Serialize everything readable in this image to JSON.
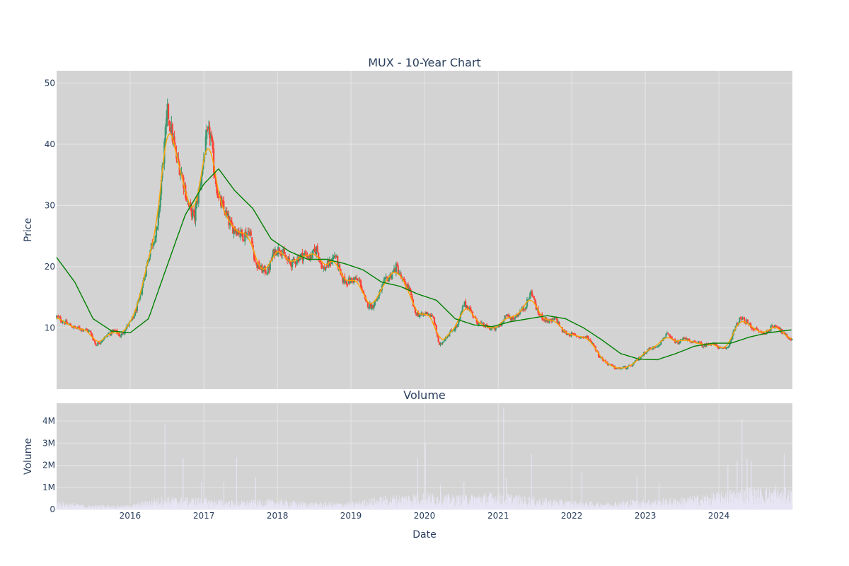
{
  "chart_data": [
    {
      "type": "candlestick",
      "title": "MUX - 10-Year Chart",
      "xlabel": "",
      "ylabel": "Price",
      "x_range": [
        "2015-01-01",
        "2024-12-31"
      ],
      "y_range": [
        0,
        52
      ],
      "x_ticks": [
        "2016",
        "2017",
        "2018",
        "2019",
        "2020",
        "2021",
        "2022",
        "2023",
        "2024"
      ],
      "y_ticks": [
        "10",
        "20",
        "30",
        "40",
        "50"
      ],
      "grid": true,
      "legend": "none",
      "colors": {
        "background": "#d3d3d3",
        "up": "#3d9970",
        "down": "#ff4136",
        "ma_short": "#ffa500",
        "ma_long": "#008000",
        "grid": "#e6e6e6"
      },
      "close_series": [
        [
          "2015-01-01",
          11.8
        ],
        [
          "2015-02-15",
          10.8
        ],
        [
          "2015-04-01",
          10.0
        ],
        [
          "2015-05-15",
          9.8
        ],
        [
          "2015-06-15",
          9.4
        ],
        [
          "2015-07-15",
          7.2
        ],
        [
          "2015-08-15",
          8.0
        ],
        [
          "2015-09-15",
          9.0
        ],
        [
          "2015-10-15",
          9.6
        ],
        [
          "2015-11-15",
          8.6
        ],
        [
          "2015-12-15",
          10.2
        ],
        [
          "2016-01-15",
          11.5
        ],
        [
          "2016-02-15",
          14.5
        ],
        [
          "2016-03-15",
          19.0
        ],
        [
          "2016-04-15",
          23.5
        ],
        [
          "2016-05-15",
          26.0
        ],
        [
          "2016-06-01",
          33.0
        ],
        [
          "2016-06-20",
          40.0
        ],
        [
          "2016-07-05",
          45.5
        ],
        [
          "2016-07-25",
          42.0
        ],
        [
          "2016-08-15",
          38.0
        ],
        [
          "2016-09-15",
          35.0
        ],
        [
          "2016-10-15",
          30.0
        ],
        [
          "2016-11-15",
          28.0
        ],
        [
          "2016-12-15",
          34.0
        ],
        [
          "2017-01-15",
          41.0
        ],
        [
          "2017-02-01",
          42.0
        ],
        [
          "2017-02-20",
          36.0
        ],
        [
          "2017-03-15",
          31.0
        ],
        [
          "2017-04-15",
          29.0
        ],
        [
          "2017-05-15",
          26.5
        ],
        [
          "2017-06-15",
          26.0
        ],
        [
          "2017-07-15",
          25.0
        ],
        [
          "2017-08-15",
          26.0
        ],
        [
          "2017-09-15",
          20.5
        ],
        [
          "2017-10-15",
          19.5
        ],
        [
          "2017-11-15",
          19.2
        ],
        [
          "2017-12-15",
          22.5
        ],
        [
          "2018-01-15",
          23.0
        ],
        [
          "2018-02-15",
          21.0
        ],
        [
          "2018-03-15",
          20.5
        ],
        [
          "2018-04-15",
          21.5
        ],
        [
          "2018-05-15",
          22.0
        ],
        [
          "2018-06-15",
          21.5
        ],
        [
          "2018-07-15",
          23.0
        ],
        [
          "2018-08-15",
          19.5
        ],
        [
          "2018-09-15",
          20.5
        ],
        [
          "2018-10-15",
          22.0
        ],
        [
          "2018-11-15",
          18.0
        ],
        [
          "2018-12-15",
          17.5
        ],
        [
          "2019-01-15",
          18.0
        ],
        [
          "2019-02-15",
          17.5
        ],
        [
          "2019-03-15",
          14.0
        ],
        [
          "2019-04-15",
          13.5
        ],
        [
          "2019-05-15",
          15.0
        ],
        [
          "2019-06-15",
          17.5
        ],
        [
          "2019-07-15",
          18.5
        ],
        [
          "2019-08-15",
          20.0
        ],
        [
          "2019-09-15",
          17.5
        ],
        [
          "2019-10-15",
          16.5
        ],
        [
          "2019-11-15",
          12.5
        ],
        [
          "2019-12-15",
          12.0
        ],
        [
          "2020-01-15",
          12.5
        ],
        [
          "2020-02-15",
          11.5
        ],
        [
          "2020-03-15",
          7.0
        ],
        [
          "2020-04-15",
          8.5
        ],
        [
          "2020-05-15",
          9.5
        ],
        [
          "2020-06-15",
          10.5
        ],
        [
          "2020-07-15",
          14.0
        ],
        [
          "2020-08-15",
          13.0
        ],
        [
          "2020-09-15",
          11.0
        ],
        [
          "2020-10-15",
          10.5
        ],
        [
          "2020-11-15",
          10.0
        ],
        [
          "2020-12-15",
          9.8
        ],
        [
          "2021-01-15",
          10.5
        ],
        [
          "2021-02-01",
          12.0
        ],
        [
          "2021-03-15",
          11.5
        ],
        [
          "2021-04-15",
          12.5
        ],
        [
          "2021-05-15",
          13.5
        ],
        [
          "2021-06-15",
          16.0
        ],
        [
          "2021-07-15",
          12.5
        ],
        [
          "2021-08-15",
          11.5
        ],
        [
          "2021-09-15",
          11.0
        ],
        [
          "2021-10-15",
          11.5
        ],
        [
          "2021-11-15",
          9.5
        ],
        [
          "2021-12-15",
          9.0
        ],
        [
          "2022-01-15",
          8.8
        ],
        [
          "2022-02-15",
          8.5
        ],
        [
          "2022-03-15",
          8.5
        ],
        [
          "2022-04-15",
          7.5
        ],
        [
          "2022-05-15",
          5.5
        ],
        [
          "2022-06-15",
          4.5
        ],
        [
          "2022-07-15",
          3.8
        ],
        [
          "2022-08-15",
          3.3
        ],
        [
          "2022-09-15",
          3.5
        ],
        [
          "2022-10-15",
          3.6
        ],
        [
          "2022-11-15",
          4.5
        ],
        [
          "2022-12-15",
          5.5
        ],
        [
          "2023-01-15",
          6.5
        ],
        [
          "2023-02-15",
          6.8
        ],
        [
          "2023-03-15",
          7.5
        ],
        [
          "2023-04-15",
          9.0
        ],
        [
          "2023-05-15",
          8.0
        ],
        [
          "2023-06-15",
          7.5
        ],
        [
          "2023-07-15",
          8.5
        ],
        [
          "2023-08-15",
          7.5
        ],
        [
          "2023-09-15",
          7.8
        ],
        [
          "2023-10-15",
          7.0
        ],
        [
          "2023-11-15",
          7.5
        ],
        [
          "2023-12-15",
          7.2
        ],
        [
          "2024-01-15",
          6.5
        ],
        [
          "2024-02-15",
          6.8
        ],
        [
          "2024-03-15",
          9.5
        ],
        [
          "2024-04-15",
          11.5
        ],
        [
          "2024-05-15",
          11.0
        ],
        [
          "2024-06-15",
          10.0
        ],
        [
          "2024-07-15",
          9.5
        ],
        [
          "2024-08-15",
          9.0
        ],
        [
          "2024-09-15",
          10.0
        ],
        [
          "2024-10-15",
          10.5
        ],
        [
          "2024-11-15",
          9.0
        ],
        [
          "2024-12-31",
          8.0
        ]
      ],
      "ma_long_series": [
        [
          "2015-01-01",
          21.5
        ],
        [
          "2015-04-01",
          17.5
        ],
        [
          "2015-07-01",
          11.5
        ],
        [
          "2015-10-01",
          9.5
        ],
        [
          "2016-01-01",
          9.2
        ],
        [
          "2016-04-01",
          11.5
        ],
        [
          "2016-07-01",
          20.0
        ],
        [
          "2016-10-01",
          28.5
        ],
        [
          "2017-01-01",
          33.5
        ],
        [
          "2017-03-15",
          36.0
        ],
        [
          "2017-06-01",
          32.5
        ],
        [
          "2017-09-01",
          29.5
        ],
        [
          "2017-12-01",
          24.5
        ],
        [
          "2018-03-01",
          22.5
        ],
        [
          "2018-06-01",
          21.2
        ],
        [
          "2018-09-01",
          21.2
        ],
        [
          "2018-12-01",
          20.5
        ],
        [
          "2019-03-01",
          19.5
        ],
        [
          "2019-06-01",
          17.5
        ],
        [
          "2019-09-01",
          16.8
        ],
        [
          "2019-12-01",
          15.5
        ],
        [
          "2020-03-01",
          14.5
        ],
        [
          "2020-06-01",
          11.5
        ],
        [
          "2020-09-01",
          10.5
        ],
        [
          "2020-12-01",
          10.2
        ],
        [
          "2021-03-01",
          11.0
        ],
        [
          "2021-06-01",
          11.5
        ],
        [
          "2021-09-01",
          12.0
        ],
        [
          "2021-12-01",
          11.5
        ],
        [
          "2022-03-01",
          10.0
        ],
        [
          "2022-06-01",
          8.0
        ],
        [
          "2022-09-01",
          5.8
        ],
        [
          "2022-12-01",
          4.9
        ],
        [
          "2023-03-01",
          4.8
        ],
        [
          "2023-06-01",
          5.8
        ],
        [
          "2023-09-01",
          7.0
        ],
        [
          "2023-12-01",
          7.5
        ],
        [
          "2024-03-01",
          7.5
        ],
        [
          "2024-06-01",
          8.5
        ],
        [
          "2024-09-01",
          9.2
        ],
        [
          "2024-12-31",
          9.7
        ]
      ]
    },
    {
      "type": "bar",
      "title": "Volume",
      "xlabel": "Date",
      "ylabel": "Volume",
      "x_range": [
        "2015-01-01",
        "2024-12-31"
      ],
      "y_range": [
        0,
        4800000
      ],
      "x_ticks": [
        "2016",
        "2017",
        "2018",
        "2019",
        "2020",
        "2021",
        "2022",
        "2023",
        "2024"
      ],
      "y_ticks": [
        "0",
        "1M",
        "2M",
        "3M",
        "4M"
      ],
      "grid": true,
      "colors": {
        "bar": "#e8e6f6",
        "background": "#d3d3d3"
      },
      "baseline_series": [
        [
          "2015-01-01",
          300000
        ],
        [
          "2015-06-01",
          150000
        ],
        [
          "2016-01-01",
          150000
        ],
        [
          "2016-06-01",
          450000
        ],
        [
          "2017-01-01",
          400000
        ],
        [
          "2017-06-01",
          300000
        ],
        [
          "2018-01-01",
          350000
        ],
        [
          "2018-06-01",
          250000
        ],
        [
          "2019-01-01",
          250000
        ],
        [
          "2019-06-01",
          450000
        ],
        [
          "2020-01-01",
          600000
        ],
        [
          "2020-06-01",
          500000
        ],
        [
          "2021-01-01",
          600000
        ],
        [
          "2021-06-01",
          450000
        ],
        [
          "2022-01-01",
          300000
        ],
        [
          "2022-06-01",
          250000
        ],
        [
          "2022-12-01",
          350000
        ],
        [
          "2023-06-01",
          400000
        ],
        [
          "2024-01-01",
          600000
        ],
        [
          "2024-06-01",
          800000
        ],
        [
          "2024-12-31",
          700000
        ]
      ],
      "spikes": [
        [
          "2016-06-22",
          3850000
        ],
        [
          "2016-09-20",
          2300000
        ],
        [
          "2016-12-20",
          1250000
        ],
        [
          "2017-04-10",
          1250000
        ],
        [
          "2017-06-12",
          2350000
        ],
        [
          "2017-09-15",
          1450000
        ],
        [
          "2019-11-28",
          2300000
        ],
        [
          "2020-01-05",
          3000000
        ],
        [
          "2020-03-20",
          1100000
        ],
        [
          "2020-07-15",
          1250000
        ],
        [
          "2021-01-28",
          4600000
        ],
        [
          "2021-02-10",
          1400000
        ],
        [
          "2021-06-15",
          2500000
        ],
        [
          "2022-02-20",
          1650000
        ],
        [
          "2022-11-20",
          1500000
        ],
        [
          "2023-03-10",
          1200000
        ],
        [
          "2024-02-15",
          2000000
        ],
        [
          "2024-04-01",
          2200000
        ],
        [
          "2024-04-25",
          4100000
        ],
        [
          "2024-05-20",
          2300000
        ],
        [
          "2024-06-10",
          2200000
        ],
        [
          "2024-10-10",
          1100000
        ],
        [
          "2024-11-20",
          2550000
        ]
      ]
    }
  ]
}
